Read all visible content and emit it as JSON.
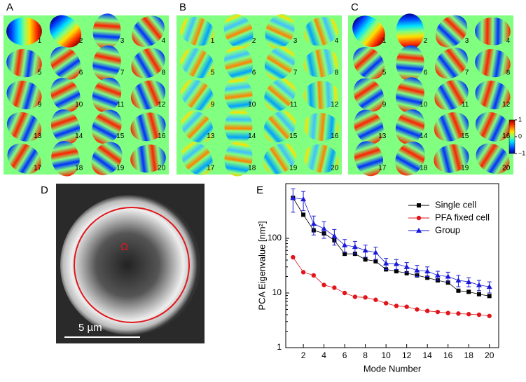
{
  "figure": {
    "panels": [
      {
        "label": "A",
        "modes": [
          1,
          2,
          3,
          4,
          5,
          6,
          7,
          8,
          9,
          10,
          11,
          12,
          13,
          14,
          15,
          16,
          17,
          18,
          19,
          20
        ]
      },
      {
        "label": "B",
        "modes": [
          1,
          2,
          3,
          4,
          5,
          6,
          7,
          8,
          9,
          10,
          11,
          12,
          13,
          14,
          15,
          16,
          17,
          18,
          19,
          20
        ]
      },
      {
        "label": "C",
        "modes": [
          1,
          2,
          3,
          4,
          5,
          6,
          7,
          8,
          9,
          10,
          11,
          12,
          13,
          14,
          15,
          16,
          17,
          18,
          19,
          20
        ]
      }
    ],
    "colorbar": {
      "ticks": [
        1,
        0,
        {
          "value": -1,
          "label": "−1"
        }
      ],
      "lim": [
        -1,
        1
      ]
    },
    "image_panel": {
      "label": "D",
      "region": "Ω",
      "scale_bar": "5 µm"
    },
    "chart_panel_label": "E"
  },
  "chart_data": {
    "type": "line",
    "log_y": true,
    "xlabel": "Mode Number",
    "ylabel": "PCA Eigenvalue [nm²]",
    "x": [
      1,
      2,
      3,
      4,
      5,
      6,
      7,
      8,
      9,
      10,
      11,
      12,
      13,
      14,
      15,
      16,
      17,
      18,
      19,
      20
    ],
    "xlim": [
      0.3,
      20.9
    ],
    "xticks": [
      2,
      4,
      6,
      8,
      10,
      12,
      14,
      16,
      18,
      20
    ],
    "ylim": [
      1,
      1000
    ],
    "yticks": [
      1,
      10,
      100
    ],
    "legend": "upper right",
    "series": [
      {
        "name": "Single cell",
        "color": "#000000",
        "marker": "square",
        "values": [
          550,
          270,
          140,
          123,
          92,
          52,
          52,
          41,
          38,
          27,
          25,
          23,
          21,
          19,
          17,
          15.5,
          11,
          10.5,
          9.5,
          8.8
        ]
      },
      {
        "name": "PFA fixed cell",
        "color": "#e0161b",
        "marker": "circle",
        "values": [
          45,
          24,
          21,
          14,
          12.5,
          10,
          8.5,
          8.3,
          7.5,
          6.5,
          5.8,
          5.6,
          5,
          4.7,
          4.5,
          4.3,
          4.2,
          4.1,
          4,
          3.8
        ]
      },
      {
        "name": "Group",
        "color": "#1a1ad6",
        "marker": "triangle",
        "values": [
          550,
          520,
          185,
          150,
          110,
          75,
          70,
          60,
          55,
          35,
          34,
          30,
          26,
          25,
          21,
          20,
          17,
          16,
          14,
          13
        ],
        "errors": [
          250,
          200,
          70,
          50,
          35,
          20,
          18,
          15,
          14,
          8,
          7,
          6,
          6,
          5,
          4,
          4,
          4,
          3,
          3,
          3
        ]
      }
    ]
  }
}
